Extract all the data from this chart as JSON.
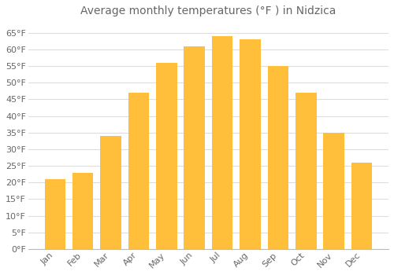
{
  "title": "Average monthly temperatures (°F ) in Nidzica",
  "months": [
    "Jan",
    "Feb",
    "Mar",
    "Apr",
    "May",
    "Jun",
    "Jul",
    "Aug",
    "Sep",
    "Oct",
    "Nov",
    "Dec"
  ],
  "values": [
    21,
    23,
    34,
    47,
    56,
    61,
    64,
    63,
    55,
    47,
    35,
    26
  ],
  "bar_color_top": "#FFA500",
  "bar_color_bottom": "#FFD060",
  "bar_edge_color": "none",
  "background_color": "#FFFFFF",
  "grid_color": "#DDDDDD",
  "text_color": "#666666",
  "title_fontsize": 10,
  "tick_fontsize": 8,
  "ylim": [
    0,
    68
  ],
  "yticks": [
    0,
    5,
    10,
    15,
    20,
    25,
    30,
    35,
    40,
    45,
    50,
    55,
    60,
    65
  ]
}
